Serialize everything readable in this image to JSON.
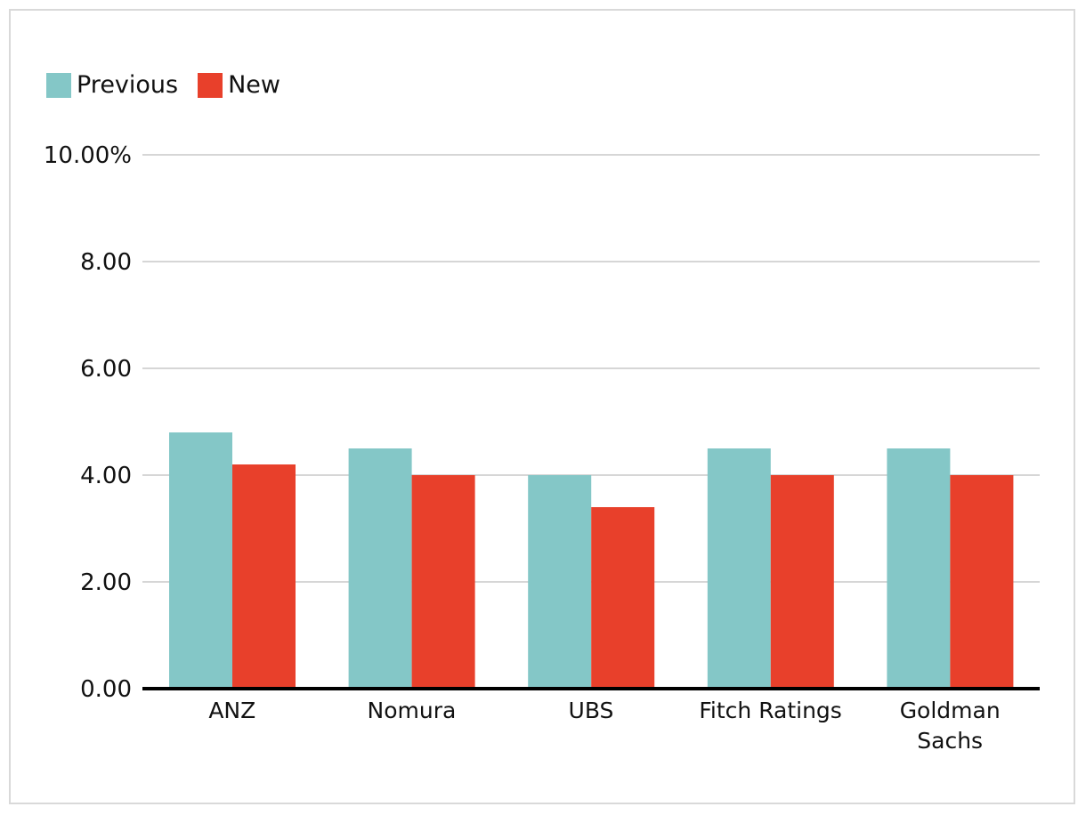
{
  "chart_data": {
    "type": "bar",
    "categories": [
      "ANZ",
      "Nomura",
      "UBS",
      "Fitch Ratings",
      "Goldman Sachs"
    ],
    "category_lines": [
      [
        "ANZ"
      ],
      [
        "Nomura"
      ],
      [
        "UBS"
      ],
      [
        "Fitch Ratings"
      ],
      [
        "Goldman",
        "Sachs"
      ]
    ],
    "series": [
      {
        "name": "Previous",
        "color": "#84c7c7",
        "values": [
          4.8,
          4.5,
          4.0,
          4.5,
          4.5
        ]
      },
      {
        "name": "New",
        "color": "#e8402b",
        "values": [
          4.2,
          4.0,
          3.4,
          4.0,
          4.0
        ]
      }
    ],
    "yticks": [
      0,
      2,
      4,
      6,
      8,
      10
    ],
    "ytick_labels": [
      "0.00",
      "2.00",
      "4.00",
      "6.00",
      "8.00",
      "10.00%"
    ],
    "ylim": [
      0,
      10
    ],
    "grid": true,
    "legend_position": "top-left",
    "title": "",
    "xlabel": "",
    "ylabel": ""
  }
}
